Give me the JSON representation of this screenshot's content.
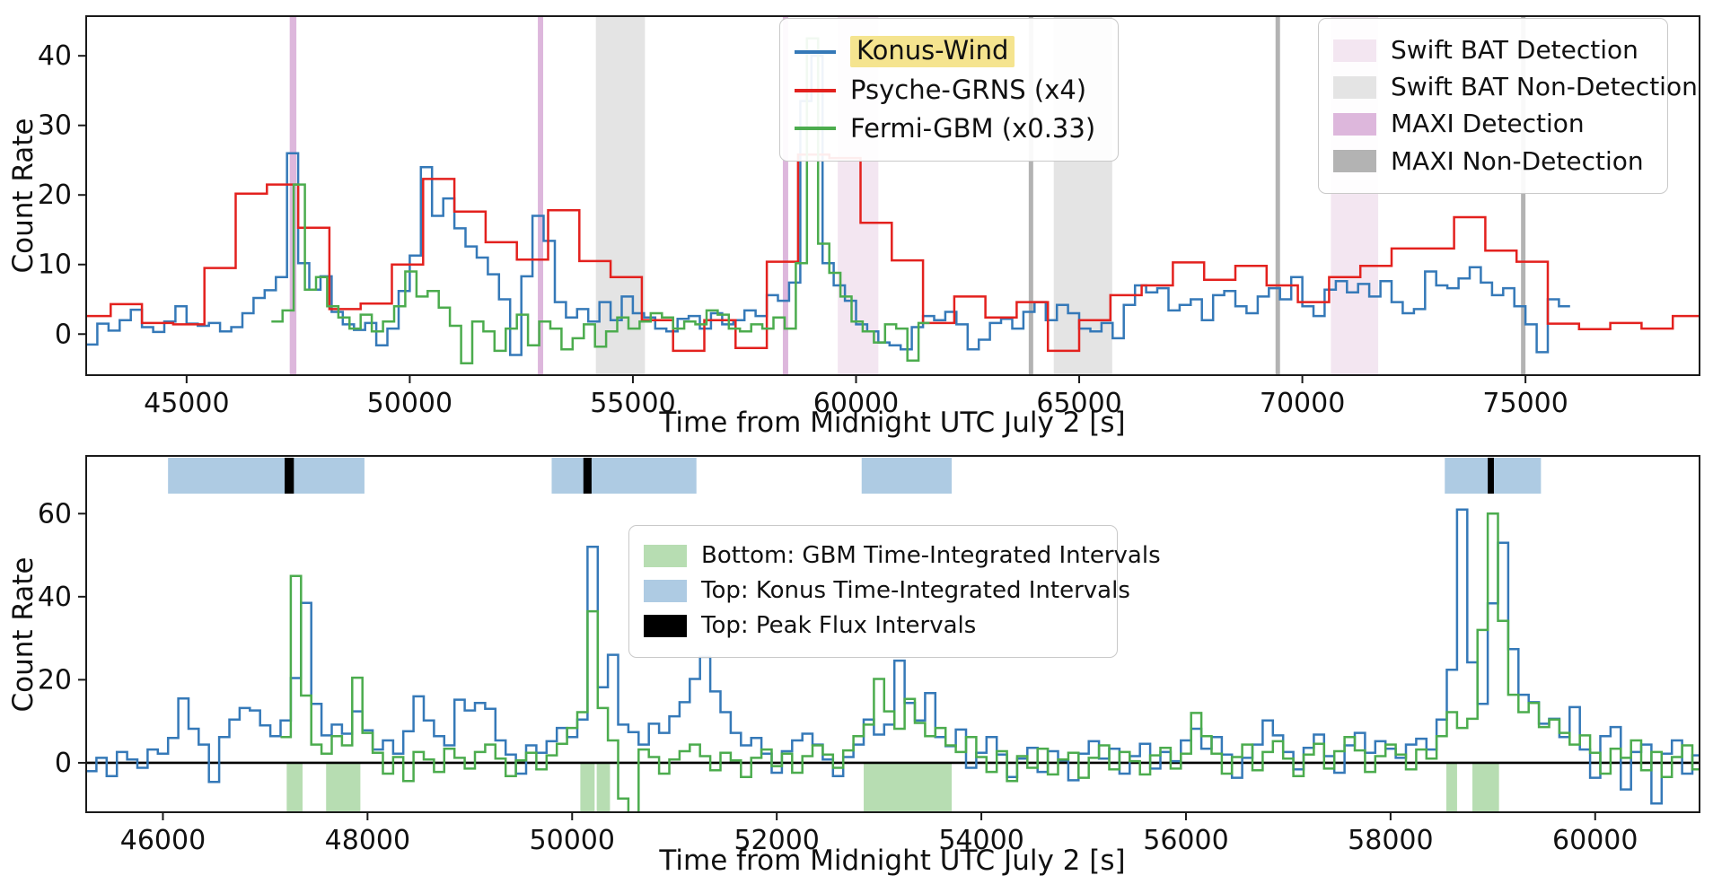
{
  "chart_data": [
    {
      "id": "top-panel",
      "type": "line",
      "subtype": "step-histogram",
      "title": "",
      "xlabel": "Time from Midnight UTC July 2 [s]",
      "ylabel": "Count Rate",
      "xlim": [
        42750,
        78900
      ],
      "ylim": [
        -5.9,
        45.7
      ],
      "xticks": [
        45000,
        50000,
        55000,
        60000,
        65000,
        70000,
        75000
      ],
      "yticks": [
        0,
        10,
        20,
        30,
        40
      ],
      "grid": false,
      "legend_position": "upper right",
      "series": [
        {
          "name": "Konus-Wind",
          "color": "#3579b8",
          "bin_width": 250,
          "x_start": 42750,
          "values": [
            -1.5,
            1.5,
            0.5,
            2.0,
            3.5,
            1.0,
            0.3,
            1.8,
            4.0,
            1.5,
            1.2,
            1.6,
            0.4,
            1.0,
            3.0,
            5.2,
            6.3,
            8.2,
            26.0,
            10.2,
            6.4,
            8.3,
            3.2,
            1.4,
            0.6,
            1.6,
            -1.6,
            0.8,
            6.2,
            11.3,
            24.0,
            17.0,
            19.5,
            15.2,
            12.6,
            11.0,
            8.6,
            5.0,
            -3.0,
            8.3,
            17.0,
            13.4,
            4.6,
            2.4,
            3.6,
            1.8,
            4.6,
            2.0,
            5.4,
            3.0,
            2.4,
            0.8,
            0.4,
            2.2,
            2.6,
            0.8,
            3.0,
            1.4,
            2.0,
            3.4,
            2.6,
            5.6,
            4.8,
            7.4,
            33.5,
            40.0,
            10.2,
            7.0,
            4.8,
            1.4,
            0.4,
            -1.2,
            -1.6,
            -2.2,
            1.0,
            2.6,
            2.0,
            3.2,
            1.4,
            -2.2,
            -0.8,
            1.6,
            2.2,
            0.8,
            3.2,
            4.6,
            2.0,
            4.2,
            3.0,
            0.8,
            0.4,
            1.6,
            -0.6,
            4.2,
            7.0,
            6.0,
            6.6,
            3.4,
            4.2,
            5.0,
            2.0,
            5.6,
            6.2,
            4.0,
            3.0,
            5.4,
            6.6,
            5.0,
            8.2,
            4.0,
            2.6,
            6.4,
            7.6,
            6.0,
            7.2,
            5.4,
            7.6,
            4.6,
            3.0,
            3.6,
            9.0,
            7.0,
            6.6,
            8.0,
            9.6,
            7.4,
            5.6,
            6.6,
            4.0,
            1.4,
            -2.6,
            5.0,
            4.0
          ]
        },
        {
          "name": "Psyche-GRNS (x4)",
          "color": "#e3211e",
          "bin_width": 700,
          "x_start": 42600,
          "values": [
            2.6,
            4.3,
            1.6,
            1.4,
            9.5,
            20.2,
            21.5,
            15.3,
            3.6,
            4.4,
            10.0,
            22.3,
            17.6,
            13.2,
            10.7,
            17.8,
            10.5,
            8.2,
            2.0,
            -2.4,
            2.0,
            -2.0,
            10.4,
            25.8,
            25.3,
            16.0,
            10.6,
            1.6,
            5.4,
            2.4,
            4.6,
            -2.4,
            2.0,
            5.6,
            7.0,
            10.3,
            7.8,
            9.8,
            7.0,
            4.6,
            8.2,
            9.8,
            12.3,
            12.3,
            16.8,
            12.0,
            10.4,
            1.5,
            0.7,
            1.6,
            0.8,
            2.6
          ]
        },
        {
          "name": "Fermi-GBM (x0.33)",
          "color": "#4cac4e",
          "bin_width": 250,
          "x_start": 46900,
          "values": [
            1.8,
            3.4,
            21.5,
            6.4,
            8.2,
            4.0,
            2.4,
            0.8,
            2.8,
            0.4,
            1.8,
            4.0,
            9.0,
            5.4,
            6.2,
            3.8,
            1.2,
            -4.2,
            1.8,
            0.4,
            -2.4,
            0.8,
            2.8,
            -1.6,
            1.8,
            0.8,
            -2.2,
            -0.6,
            1.4,
            -1.8,
            0.4,
            2.4,
            0.8,
            1.8,
            3.0,
            2.4,
            0.8,
            1.8,
            1.4,
            3.4,
            2.8,
            0.8,
            0.4,
            1.4,
            0.8,
            2.4,
            0.8,
            10.2,
            42.5,
            13.0,
            8.8,
            5.4,
            1.8,
            0.4,
            -1.2,
            1.4,
            0.8,
            -3.8,
            1.6
          ]
        }
      ],
      "bands": {
        "swift_bat_detection": {
          "color": "#f3e6f1",
          "intervals": [
            [
              59590,
              60500
            ],
            [
              70640,
              71700
            ]
          ]
        },
        "swift_bat_non_detection": {
          "color": "#e4e4e4",
          "intervals": [
            [
              54170,
              55270
            ],
            [
              64430,
              65740
            ]
          ]
        },
        "maxi_detection": {
          "color": "#ddb7dc",
          "intervals": [
            [
              47310,
              47460
            ],
            [
              52870,
              52990
            ],
            [
              58360,
              58480
            ]
          ]
        },
        "maxi_non_detection": {
          "color": "#b3b3b3",
          "intervals": [
            [
              63870,
              63970
            ],
            [
              69400,
              69500
            ],
            [
              74900,
              75000
            ]
          ]
        }
      }
    },
    {
      "id": "bottom-panel",
      "type": "line",
      "subtype": "step-histogram",
      "title": "",
      "xlabel": "Time from Midnight UTC July 2 [s]",
      "ylabel": "Count Rate",
      "xlim": [
        45250,
        61020
      ],
      "ylim": [
        -11.9,
        73.9
      ],
      "xticks": [
        46000,
        48000,
        50000,
        52000,
        54000,
        56000,
        58000,
        60000
      ],
      "yticks": [
        0,
        20,
        40,
        60
      ],
      "grid": false,
      "zero_line": true,
      "series": [
        {
          "name": "Konus-Wind",
          "color": "#3579b8",
          "bin_width": 100,
          "x_start": 45250,
          "values": [
            -2.0,
            1.2,
            -3.2,
            2.6,
            0.8,
            -1.2,
            3.2,
            2.2,
            6.0,
            15.5,
            8.2,
            4.4,
            -4.6,
            6.2,
            10.4,
            13.2,
            12.6,
            9.0,
            6.4,
            10.2,
            20.4,
            38.5,
            14.2,
            6.6,
            9.2,
            7.0,
            12.4,
            7.8,
            3.2,
            5.4,
            2.2,
            7.6,
            16.0,
            10.2,
            6.4,
            4.2,
            15.2,
            12.6,
            14.4,
            13.0,
            5.4,
            2.0,
            -2.6,
            4.2,
            2.4,
            5.2,
            8.4,
            6.2,
            10.4,
            52.0,
            18.2,
            26.0,
            9.2,
            7.4,
            4.4,
            9.4,
            7.2,
            11.2,
            14.6,
            20.2,
            25.5,
            17.2,
            12.2,
            7.2,
            4.2,
            6.0,
            2.2,
            -2.4,
            2.8,
            5.4,
            7.0,
            4.4,
            0.8,
            -3.2,
            1.4,
            4.4,
            10.4,
            6.8,
            9.2,
            24.6,
            14.4,
            10.2,
            16.8,
            6.2,
            4.0,
            8.0,
            -1.2,
            2.4,
            6.2,
            2.0,
            -3.4,
            1.0,
            3.6,
            -2.2,
            2.8,
            0.6,
            -4.2,
            2.2,
            5.2,
            1.0,
            3.4,
            -2.6,
            1.6,
            4.6,
            -1.4,
            2.6,
            0.4,
            5.4,
            8.2,
            3.4,
            6.2,
            2.0,
            -3.6,
            1.2,
            4.4,
            10.2,
            6.6,
            2.6,
            -1.6,
            3.6,
            6.8,
            1.6,
            -2.4,
            4.2,
            7.2,
            2.4,
            5.2,
            3.4,
            1.2,
            4.4,
            5.8,
            3.2,
            10.4,
            22.4,
            61.0,
            24.2,
            14.2,
            38.4,
            53.0,
            27.4,
            16.4,
            14.6,
            9.4,
            10.6,
            6.2,
            13.4,
            3.2,
            -3.6,
            6.4,
            8.6,
            -6.4,
            2.6,
            4.4,
            -9.8,
            2.2,
            5.4,
            -2.6,
            1.8
          ]
        },
        {
          "name": "Fermi-GBM",
          "color": "#4cac4e",
          "bin_width": 100,
          "x_start": 47150,
          "values": [
            6.2,
            45.0,
            16.2,
            4.4,
            2.2,
            6.4,
            4.2,
            20.5,
            7.2,
            2.4,
            -2.6,
            1.4,
            -4.4,
            2.6,
            0.8,
            -2.2,
            3.4,
            1.2,
            -1.4,
            2.6,
            4.4,
            1.0,
            -3.2,
            0.6,
            2.4,
            -1.6,
            1.8,
            4.6,
            8.4,
            12.2,
            36.5,
            13.2,
            5.4,
            -8.6,
            -12.0,
            3.2,
            1.4,
            -2.6,
            0.8,
            2.8,
            4.4,
            1.6,
            -1.8,
            2.4,
            0.6,
            -3.4,
            1.2,
            3.2,
            -0.8,
            2.2,
            -2.4,
            1.6,
            4.2,
            2.0,
            -1.2,
            3.0,
            6.4,
            9.2,
            20.2,
            12.4,
            8.2,
            15.4,
            9.6,
            6.4,
            8.4,
            4.2,
            2.6,
            6.2,
            1.4,
            -2.2,
            2.8,
            -4.4,
            1.6,
            -1.2,
            3.4,
            -2.8,
            0.8,
            2.4,
            -3.6,
            1.2,
            4.2,
            -1.6,
            2.6,
            0.4,
            -2.8,
            1.8,
            3.6,
            -1.4,
            2.2,
            12.0,
            6.4,
            2.2,
            -2.6,
            1.4,
            4.4,
            -1.8,
            2.6,
            5.2,
            1.0,
            -3.2,
            2.0,
            4.6,
            -1.4,
            2.8,
            6.2,
            3.0,
            -2.2,
            1.6,
            4.4,
            2.0,
            -1.6,
            3.2,
            1.0,
            6.4,
            12.2,
            8.4,
            10.6,
            32.0,
            60.0,
            34.2,
            16.4,
            12.2,
            14.4,
            8.6,
            10.4,
            7.2,
            4.4,
            6.6,
            2.4,
            -2.6,
            3.4,
            1.2,
            5.4,
            -1.8,
            2.6,
            -3.4,
            1.4,
            4.2,
            -1.6
          ]
        }
      ],
      "intervals": {
        "konus": {
          "color": "#aecbe3",
          "position": "top",
          "intervals": [
            [
              46050,
              47970
            ],
            [
              49800,
              51215
            ],
            [
              52830,
              53710
            ],
            [
              58530,
              59470
            ]
          ]
        },
        "peak": {
          "color": "#000000",
          "position": "top",
          "intervals": [
            [
              47190,
              47280
            ],
            [
              50110,
              50190
            ],
            [
              58950,
              59010
            ]
          ]
        },
        "gbm": {
          "color": "#b7ddb2",
          "position": "bottom",
          "intervals": [
            [
              47210,
              47365
            ],
            [
              47595,
              47930
            ],
            [
              50080,
              50220
            ],
            [
              50240,
              50370
            ],
            [
              52850,
              53710
            ],
            [
              58545,
              58650
            ],
            [
              58800,
              59060
            ]
          ]
        }
      }
    }
  ],
  "legends": {
    "lines": {
      "items": [
        {
          "label": "Konus-Wind",
          "color": "#3579b8",
          "highlighted": true
        },
        {
          "label": "Psyche-GRNS (x4)",
          "color": "#e3211e",
          "highlighted": false
        },
        {
          "label": "Fermi-GBM (x0.33)",
          "color": "#4cac4e",
          "highlighted": false
        }
      ]
    },
    "detections": {
      "items": [
        {
          "label": "Swift BAT Detection",
          "color": "#f3e6f1"
        },
        {
          "label": "Swift BAT Non-Detection",
          "color": "#e4e4e4"
        },
        {
          "label": "MAXI Detection",
          "color": "#ddb7dc"
        },
        {
          "label": "MAXI Non-Detection",
          "color": "#b3b3b3"
        }
      ]
    },
    "intervals": {
      "items": [
        {
          "label": "Bottom: GBM Time-Integrated Intervals",
          "color": "#b7ddb2"
        },
        {
          "label": "Top: Konus Time-Integrated Intervals",
          "color": "#aecbe3"
        },
        {
          "label": "Top: Peak Flux Intervals",
          "color": "#000000"
        }
      ]
    }
  },
  "highlight_color": "#f5e48f"
}
